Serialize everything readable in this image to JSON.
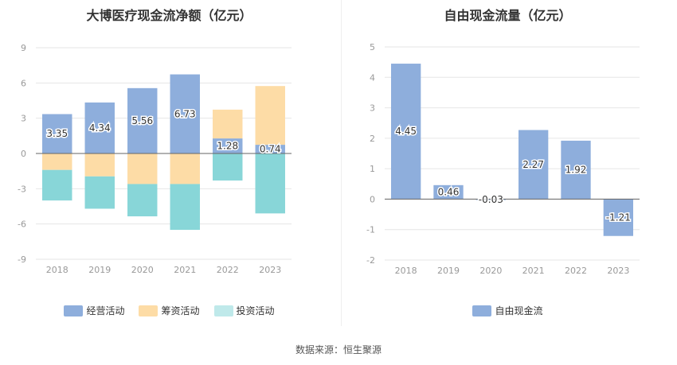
{
  "source_label": "数据来源：恒生聚源",
  "chart_data": [
    {
      "type": "bar",
      "stacked": true,
      "title": "大博医疗现金流净额（亿元）",
      "categories": [
        "2018",
        "2019",
        "2020",
        "2021",
        "2022",
        "2023"
      ],
      "ylim": [
        -9,
        9
      ],
      "yticks": [
        9,
        6,
        3,
        0,
        -3,
        -6,
        -9
      ],
      "grid": true,
      "legend_position": "bottom",
      "series": [
        {
          "name": "经营活动",
          "color": "#8eaedc",
          "values": [
            3.35,
            4.34,
            5.56,
            6.73,
            1.28,
            0.74
          ],
          "labels": [
            "3.35",
            "4.34",
            "5.56",
            "6.73",
            "1.28",
            "0.74"
          ]
        },
        {
          "name": "筹资活动",
          "color": "#fddca6",
          "values": [
            -1.4,
            -1.95,
            -2.6,
            -2.6,
            2.45,
            5.0
          ]
        },
        {
          "name": "投资活动",
          "color": "#88d6d8",
          "values": [
            -2.6,
            -2.75,
            -2.75,
            -3.9,
            -2.3,
            -5.1
          ]
        }
      ]
    },
    {
      "type": "bar",
      "title": "自由现金流量（亿元）",
      "categories": [
        "2018",
        "2019",
        "2020",
        "2021",
        "2022",
        "2023"
      ],
      "ylim": [
        -2,
        5
      ],
      "yticks": [
        5,
        4,
        3,
        2,
        1,
        0,
        -1,
        -2
      ],
      "grid": true,
      "legend_position": "bottom",
      "series": [
        {
          "name": "自由现金流",
          "color": "#8eaedc",
          "values": [
            4.45,
            0.46,
            -0.03,
            2.27,
            1.92,
            -1.21
          ],
          "labels": [
            "4.45",
            "0.46",
            "-0.03",
            "2.27",
            "1.92",
            "-1.21"
          ]
        }
      ]
    }
  ]
}
